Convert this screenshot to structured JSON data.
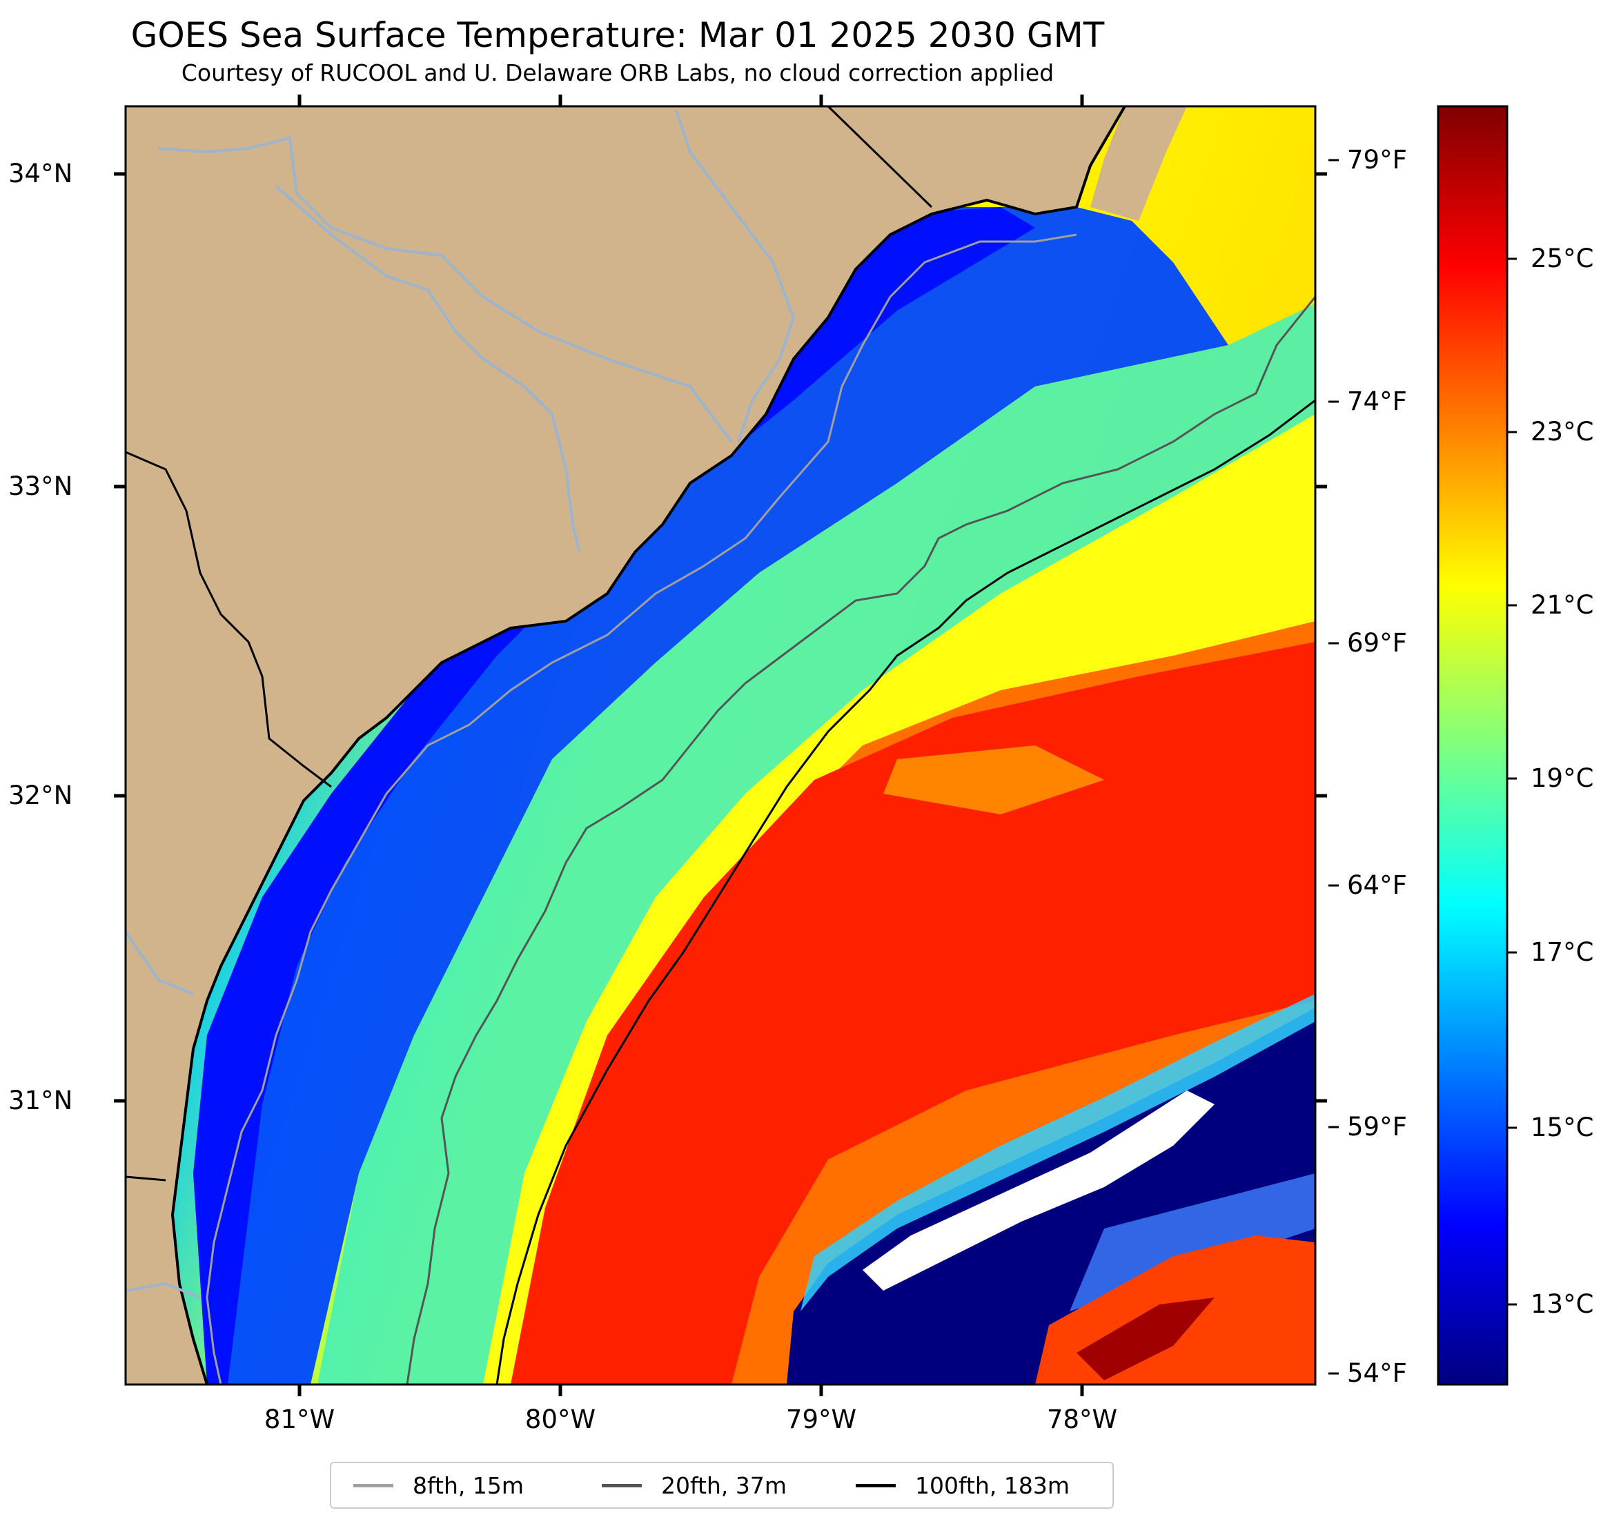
{
  "title": "GOES Sea Surface Temperature: Mar 01 2025 2030 GMT",
  "subtitle": "Courtesy of RUCOOL and U. Delaware ORB Labs, no cloud correction applied",
  "lat_labels": [
    "34°N",
    "33°N",
    "32°N",
    "31°N"
  ],
  "lon_labels": [
    "81°W",
    "80°W",
    "79°W",
    "78°W"
  ],
  "fahrenheit_labels": [
    "79°F",
    "74°F",
    "69°F",
    "64°F",
    "59°F",
    "54°F"
  ],
  "colorbar": {
    "labels": [
      "25°C",
      "23°C",
      "21°C",
      "19°C",
      "17°C",
      "15°C",
      "13°C"
    ],
    "colormap_stops": [
      "#00007f",
      "#0000ff",
      "#007fff",
      "#00ffff",
      "#7fff7f",
      "#ffff00",
      "#ff7f00",
      "#ff0000",
      "#7f0000"
    ]
  },
  "legend": [
    {
      "label": "8fth, 15m",
      "color": "#a0a0a0"
    },
    {
      "label": "20fth, 37m",
      "color": "#555555"
    },
    {
      "label": "100fth, 183m",
      "color": "#000000"
    }
  ],
  "colors": {
    "land": "#d2b48c",
    "river": "#9cb4cc",
    "coastline": "#000000"
  }
}
